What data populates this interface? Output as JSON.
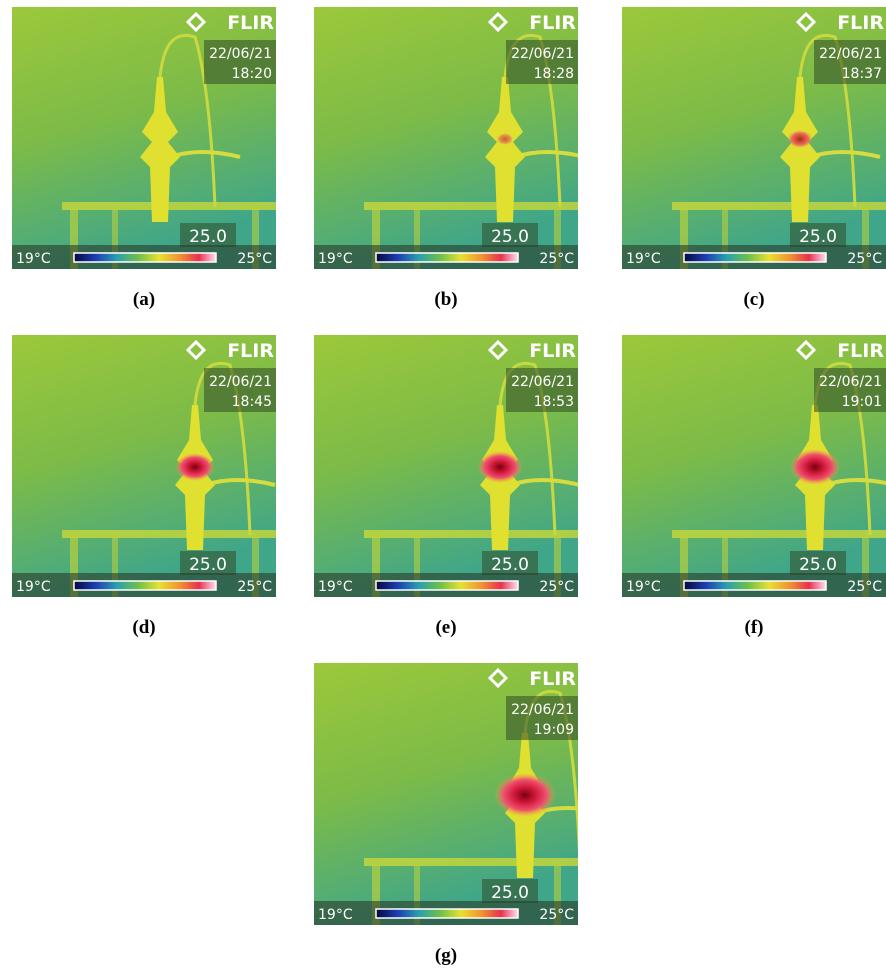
{
  "panels": [
    {
      "logo": "FLIR",
      "date": "22/06/21",
      "time": "18:20",
      "spot": "25.0",
      "scale_min": "19°C",
      "scale_max": "25°C",
      "caption": "(a)"
    },
    {
      "logo": "FLIR",
      "date": "22/06/21",
      "time": "18:28",
      "spot": "25.0",
      "scale_min": "19°C",
      "scale_max": "25°C",
      "caption": "(b)"
    },
    {
      "logo": "FLIR",
      "date": "22/06/21",
      "time": "18:37",
      "spot": "25.0",
      "scale_min": "19°C",
      "scale_max": "25°C",
      "caption": "(c)"
    },
    {
      "logo": "FLIR",
      "date": "22/06/21",
      "time": "18:45",
      "spot": "25.0",
      "scale_min": "19°C",
      "scale_max": "25°C",
      "caption": "(d)"
    },
    {
      "logo": "FLIR",
      "date": "22/06/21",
      "time": "18:53",
      "spot": "25.0",
      "scale_min": "19°C",
      "scale_max": "25°C",
      "caption": "(e)"
    },
    {
      "logo": "FLIR",
      "date": "22/06/21",
      "time": "19:01",
      "spot": "25.0",
      "scale_min": "19°C",
      "scale_max": "25°C",
      "caption": "(f)"
    },
    {
      "logo": "FLIR",
      "date": "22/06/21",
      "time": "19:09",
      "spot": "25.0",
      "scale_min": "19°C",
      "scale_max": "25°C",
      "caption": "(g)"
    }
  ]
}
